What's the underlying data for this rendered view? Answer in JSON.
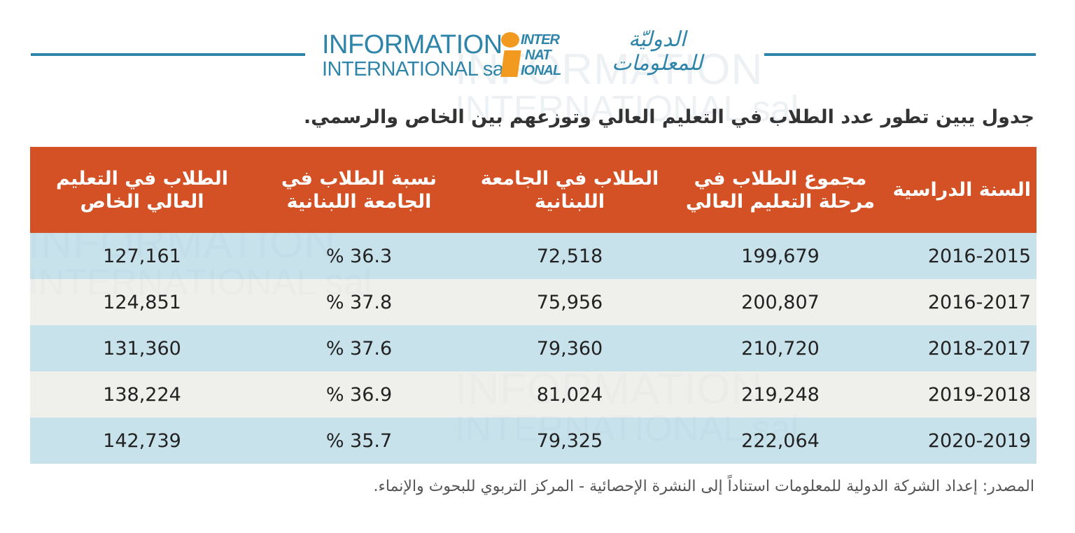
{
  "logo": {
    "en_line1": "INFORMATION",
    "en_line2": "INTERNATIONAL sal",
    "mark_rows": [
      "INTER",
      "NAT",
      "IONAL"
    ],
    "ar_line1": "الدوليّة",
    "ar_line2": "للمعلومات",
    "brand_colors": {
      "primary": "#2f85a9",
      "accent": "#f29a1f"
    }
  },
  "title": "جدول يبين تطور عدد الطلاب في التعليم العالي وتوزعهم بين الخاص والرسمي.",
  "table": {
    "header_color": "#d35124",
    "headers": [
      "السنة الدراسية",
      "مجموع الطلاب في مرحلة التعليم العالي",
      "الطلاب في الجامعة اللبنانية",
      "نسبة الطلاب في الجامعة اللبنانية",
      "الطلاب في التعليم العالي الخاص"
    ],
    "rows": [
      [
        "2016-2015",
        "199,679",
        "72,518",
        "% 36.3",
        "127,161"
      ],
      [
        "2016-2017",
        "200,807",
        "75,956",
        "% 37.8",
        "124,851"
      ],
      [
        "2018-2017",
        "210,720",
        "79,360",
        "% 37.6",
        "131,360"
      ],
      [
        "2019-2018",
        "219,248",
        "81,024",
        "% 36.9",
        "138,224"
      ],
      [
        "2020-2019",
        "222,064",
        "79,325",
        "% 35.7",
        "142,739"
      ]
    ]
  },
  "source": "المصدر: إعداد الشركة الدولية للمعلومات استناداً إلى النشرة الإحصائية - المركز التربوي للبحوث والإنماء."
}
